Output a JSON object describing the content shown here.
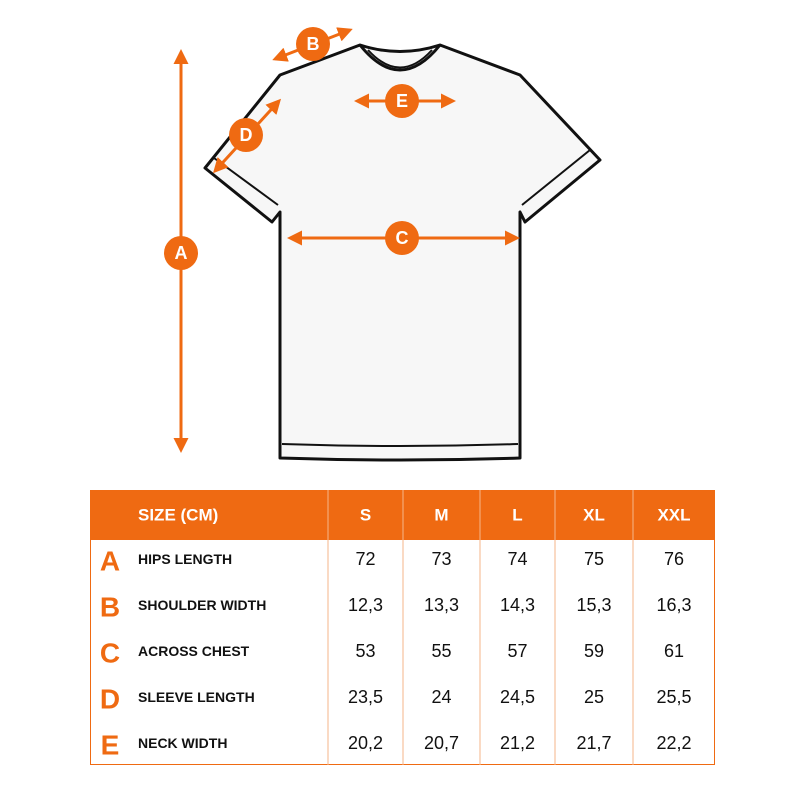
{
  "diagram": {
    "markers": [
      "A",
      "B",
      "C",
      "D",
      "E"
    ]
  },
  "table": {
    "header": [
      "SIZE (CM)",
      "S",
      "M",
      "L",
      "XL",
      "XXL"
    ],
    "rows": [
      {
        "letter": "A",
        "label": "HIPS LENGTH",
        "values": [
          "72",
          "73",
          "74",
          "75",
          "76"
        ]
      },
      {
        "letter": "B",
        "label": "SHOULDER WIDTH",
        "values": [
          "12,3",
          "13,3",
          "14,3",
          "15,3",
          "16,3"
        ]
      },
      {
        "letter": "C",
        "label": "ACROSS CHEST",
        "values": [
          "53",
          "55",
          "57",
          "59",
          "61"
        ]
      },
      {
        "letter": "D",
        "label": "SLEEVE LENGTH",
        "values": [
          "23,5",
          "24",
          "24,5",
          "25",
          "25,5"
        ]
      },
      {
        "letter": "E",
        "label": "NECK WIDTH",
        "values": [
          "20,2",
          "20,7",
          "21,2",
          "21,7",
          "22,2"
        ]
      }
    ]
  }
}
